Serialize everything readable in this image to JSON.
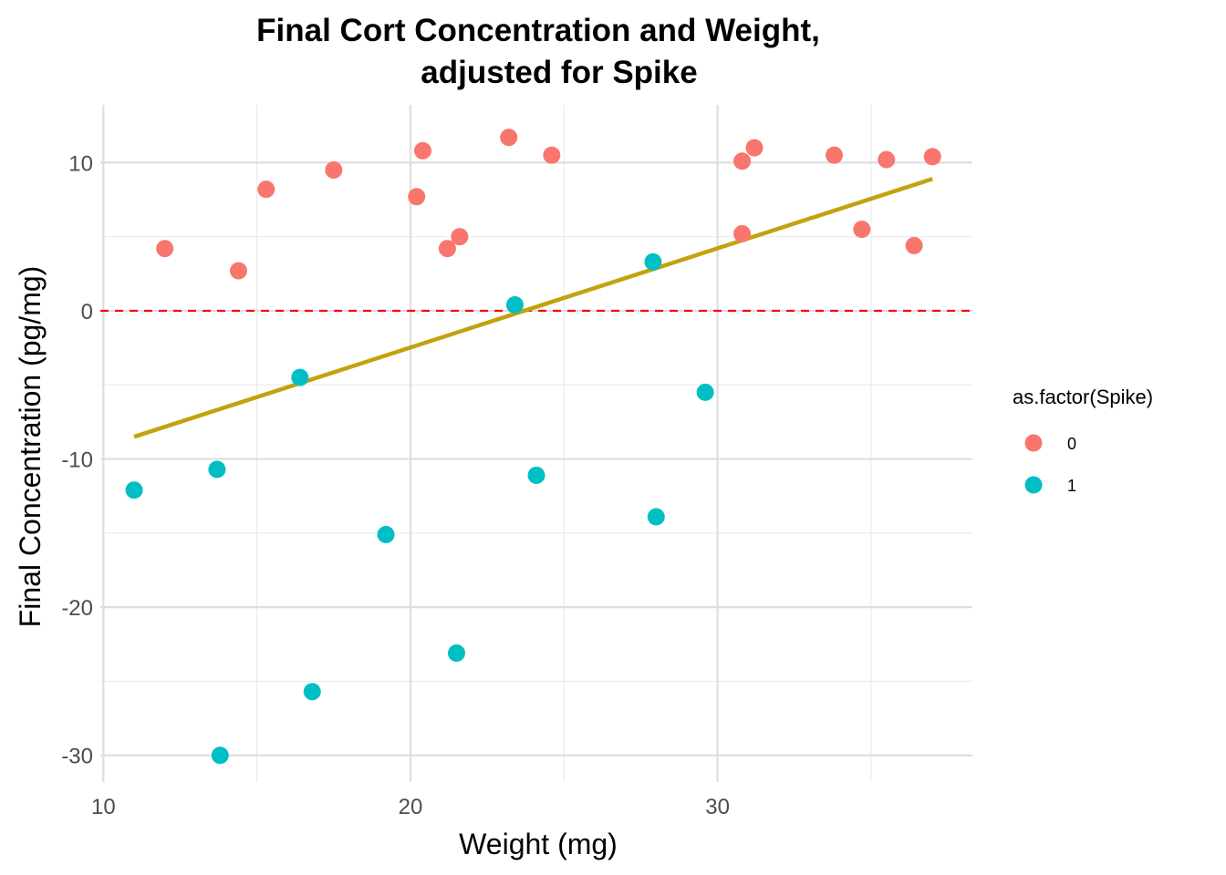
{
  "chart_data": {
    "type": "scatter",
    "title_lines": [
      "Final Cort Concentration and Weight,",
      "adjusted for Spike"
    ],
    "xlabel": "Weight (mg)",
    "ylabel": "Final Concentration (pg/mg)",
    "xlim": [
      9.9,
      38.3
    ],
    "ylim": [
      -31.8,
      13.9
    ],
    "x_ticks": [
      10,
      20,
      30
    ],
    "y_ticks": [
      10,
      0,
      -10,
      -20,
      -30
    ],
    "x_tick_labels": [
      "10",
      "20",
      "30"
    ],
    "y_tick_labels": [
      "10",
      "0",
      "-10",
      "-20",
      "-30"
    ],
    "x_minor_ticks": [
      15,
      25,
      35
    ],
    "y_minor_ticks": [
      5,
      -5,
      -15,
      -25
    ],
    "grid": true,
    "legend": {
      "title": "as.factor(Spike)",
      "position": "right",
      "entries": [
        {
          "label": "0",
          "color": "#F8766D"
        },
        {
          "label": "1",
          "color": "#00BFC4"
        }
      ]
    },
    "series": [
      {
        "name": "0",
        "color": "#F8766D",
        "points": [
          [
            12.0,
            4.2
          ],
          [
            14.4,
            2.7
          ],
          [
            15.3,
            8.2
          ],
          [
            17.5,
            9.5
          ],
          [
            20.2,
            7.7
          ],
          [
            20.4,
            10.8
          ],
          [
            21.2,
            4.2
          ],
          [
            21.6,
            5.0
          ],
          [
            23.2,
            11.7
          ],
          [
            24.6,
            10.5
          ],
          [
            30.8,
            10.1
          ],
          [
            30.8,
            5.2
          ],
          [
            31.2,
            11.0
          ],
          [
            33.8,
            10.5
          ],
          [
            34.7,
            5.5
          ],
          [
            35.5,
            10.2
          ],
          [
            36.4,
            4.4
          ],
          [
            37.0,
            10.4
          ]
        ]
      },
      {
        "name": "1",
        "color": "#00BFC4",
        "points": [
          [
            11.0,
            -12.1
          ],
          [
            13.7,
            -10.7
          ],
          [
            13.8,
            -30.0
          ],
          [
            16.4,
            -4.5
          ],
          [
            16.8,
            -25.7
          ],
          [
            19.2,
            -15.1
          ],
          [
            21.5,
            -23.1
          ],
          [
            23.4,
            0.4
          ],
          [
            24.1,
            -11.1
          ],
          [
            27.9,
            3.3
          ],
          [
            28.0,
            -13.9
          ],
          [
            29.6,
            -5.5
          ]
        ]
      }
    ],
    "fit_line": {
      "color": "#C4A20E",
      "x": [
        11.0,
        37.0
      ],
      "y": [
        -8.5,
        8.9
      ]
    },
    "reference_line": {
      "y": 0,
      "color": "#FF0000",
      "style": "dashed"
    }
  }
}
